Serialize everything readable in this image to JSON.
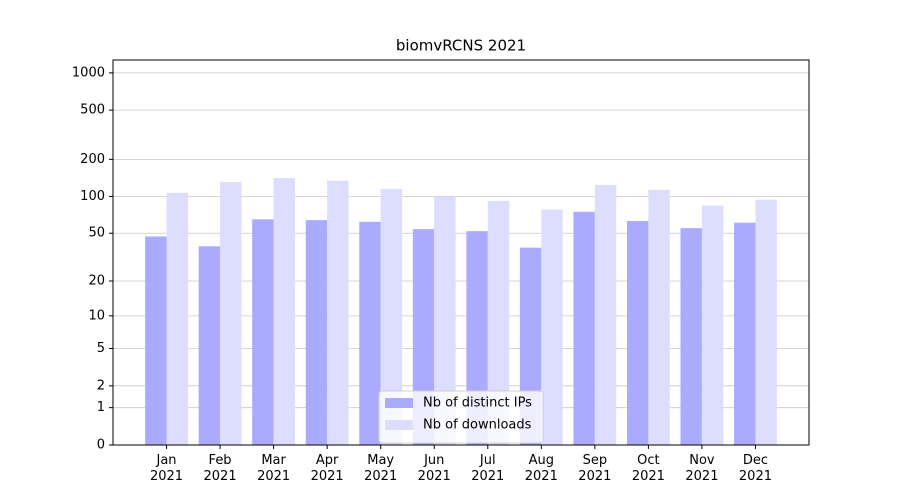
{
  "chart_data": {
    "type": "bar",
    "title": "biomvRCNS 2021",
    "categories": [
      "Jan\n2021",
      "Feb\n2021",
      "Mar\n2021",
      "Apr\n2021",
      "May\n2021",
      "Jun\n2021",
      "Jul\n2021",
      "Aug\n2021",
      "Sep\n2021",
      "Oct\n2021",
      "Nov\n2021",
      "Dec\n2021"
    ],
    "series": [
      {
        "name": "Nb of distinct IPs",
        "color": "#aaaaff",
        "values": [
          47,
          39,
          65,
          64,
          62,
          54,
          52,
          38,
          75,
          63,
          55,
          61
        ]
      },
      {
        "name": "Nb of downloads",
        "color": "#ddddff",
        "values": [
          107,
          131,
          141,
          134,
          115,
          100,
          92,
          78,
          124,
          113,
          84,
          94
        ]
      }
    ],
    "yscale": "log1p",
    "ylim": [
      0,
      1270
    ],
    "yticks": [
      0,
      1,
      2,
      5,
      10,
      20,
      50,
      100,
      200,
      500,
      1000
    ],
    "grid": true,
    "legend": "lower center"
  }
}
